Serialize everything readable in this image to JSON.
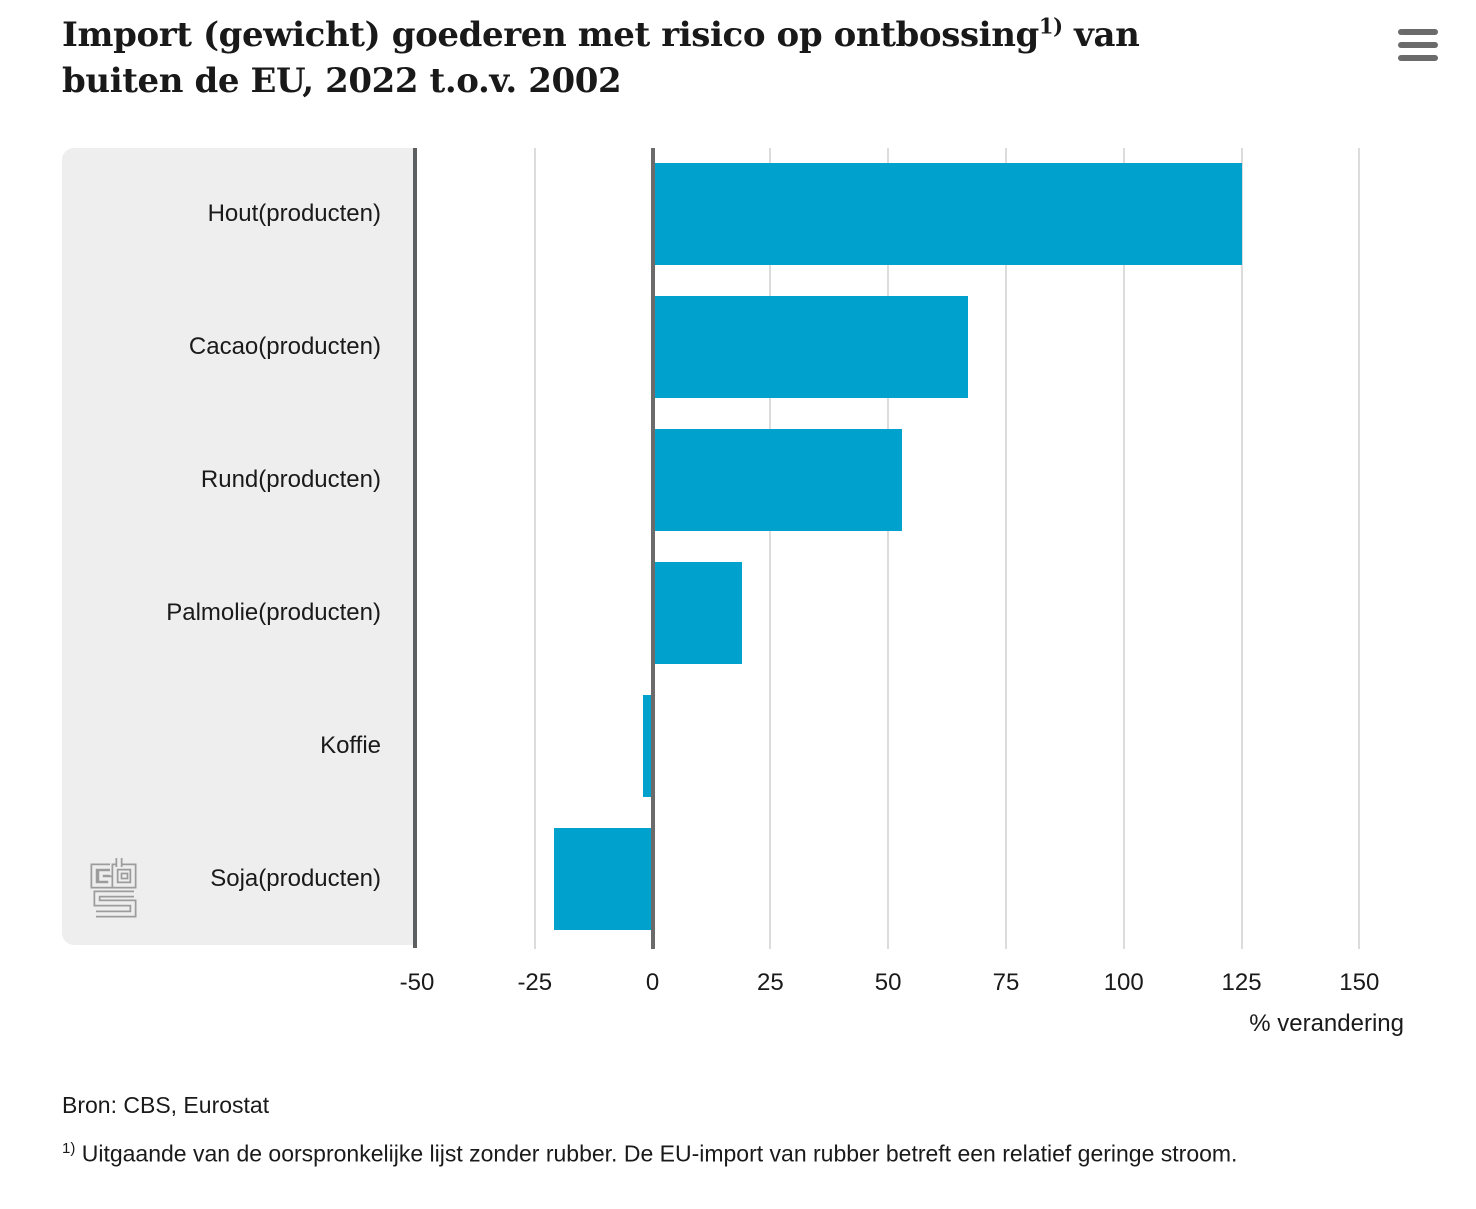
{
  "header": {
    "title": {
      "part1": "Import (gewicht) goederen met risico op ontbossing",
      "sup": "1)",
      "part2": " van",
      "line2": "buiten de EU, 2022 t.o.v. 2002"
    },
    "menu_icon": "hamburger-icon"
  },
  "chart_data": {
    "type": "bar",
    "orientation": "horizontal",
    "title": "Import (gewicht) goederen met risico op ontbossing 1) van buiten de EU, 2022 t.o.v. 2002",
    "categories": [
      "Hout(producten)",
      "Cacao(producten)",
      "Rund(producten)",
      "Palmolie(producten)",
      "Koffie",
      "Soja(producten)"
    ],
    "values": [
      125,
      67,
      53,
      19,
      -2,
      -21
    ],
    "unit": "%",
    "xlabel": "% verandering",
    "xlim": [
      -50,
      165
    ],
    "xticks": [
      -50,
      -25,
      0,
      25,
      50,
      75,
      100,
      125,
      150
    ],
    "grid": true,
    "legend": "none",
    "bar_color": "#00a1cd",
    "grid_color": "#dcdcdc",
    "zero_line_color": "#6b6b6b",
    "axis_line_color": "#5d5e60",
    "label_panel_color": "#eeeeee"
  },
  "footer": {
    "source": "Bron: CBS, Eurostat",
    "footnote_marker": "1)",
    "footnote_text": "Uitgaande van de oorspronkelijke lijst zonder rubber. De EU-import van rubber betreft een relatief geringe stroom."
  },
  "branding": {
    "logo": "cbs-logo",
    "logo_color": "#9c9c9c"
  }
}
